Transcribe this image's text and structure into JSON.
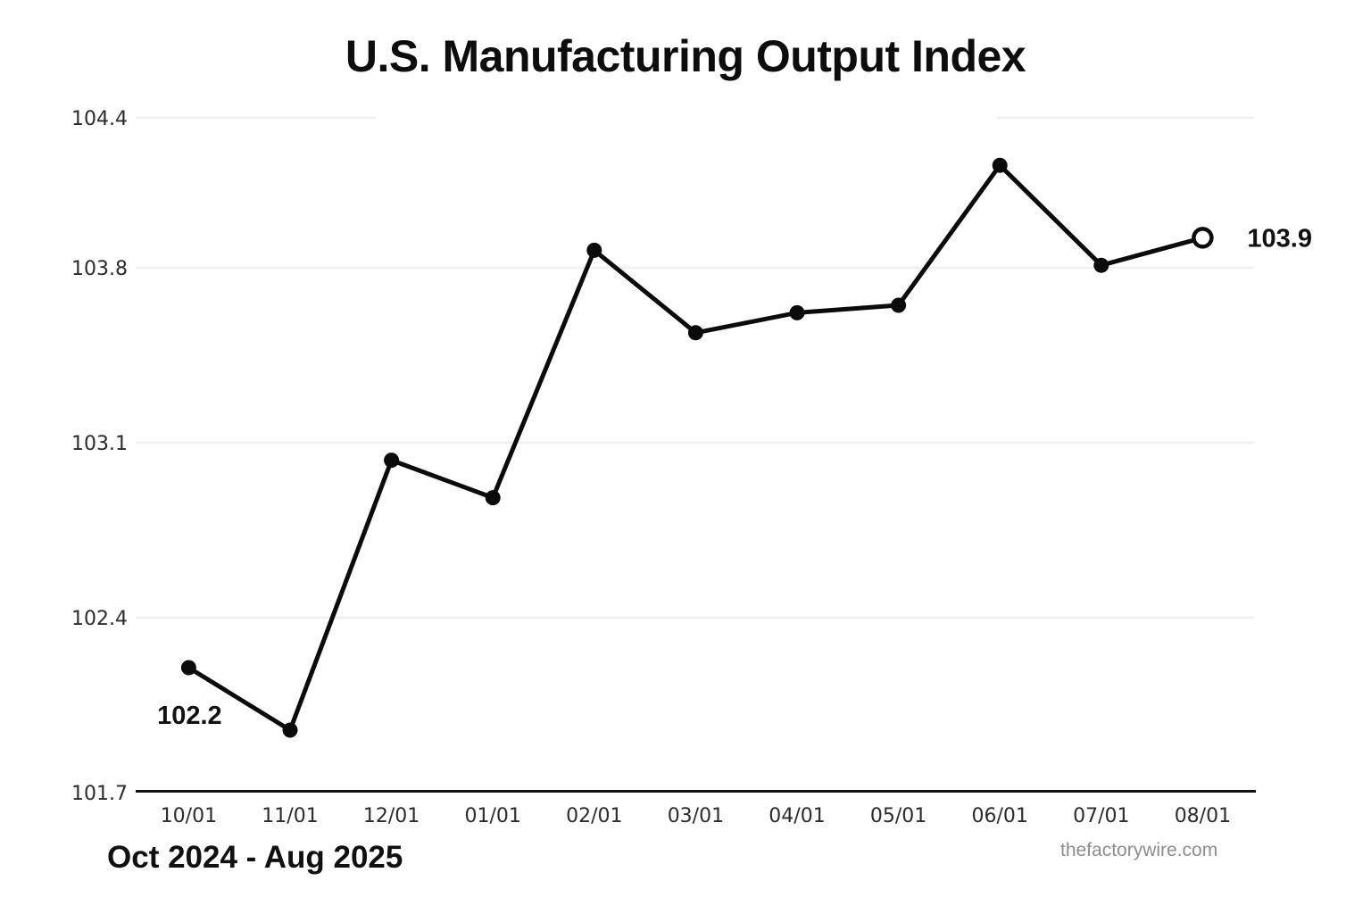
{
  "title": "U.S. Manufacturing Output Index",
  "subtitle": "Oct 2024 - Aug 2025",
  "watermark": "thefactorywire.com",
  "chart_data": {
    "type": "line",
    "title": "U.S. Manufacturing Output Index",
    "subtitle_date_range": "Oct 2024 - Aug 2025",
    "categories": [
      "10/01",
      "11/01",
      "12/01",
      "01/01",
      "02/01",
      "03/01",
      "04/01",
      "05/01",
      "06/01",
      "07/01",
      "08/01"
    ],
    "values": [
      102.2,
      101.95,
      103.03,
      102.88,
      103.87,
      103.54,
      103.62,
      103.65,
      104.21,
      103.81,
      103.92
    ],
    "series_name": "Manufacturing Output Index",
    "y_tick_labels": [
      "104.4",
      "103.8",
      "103.1",
      "102.4",
      "101.7"
    ],
    "ylim": [
      101.7,
      104.4
    ],
    "xlabel": "",
    "ylabel": "",
    "legend": "none",
    "gridlines": "horizontal",
    "annotations": [
      {
        "text": "102.2",
        "point": "10/01",
        "placement": "below-left-of-first-point"
      },
      {
        "text": "103.9",
        "point": "08/01",
        "placement": "right-of-last-point"
      }
    ],
    "marker_style": "filled-circle",
    "last_point_marker": "open-circle",
    "colors": {
      "line": "#0b0b0b",
      "marker": "#0b0b0b",
      "grid": "#f0f0f0",
      "axis": "#111111",
      "tick_text": "#2b2b2b",
      "annotation_text": "#111111",
      "watermark_text": "#8d8d8d",
      "background": "#ffffff"
    }
  }
}
